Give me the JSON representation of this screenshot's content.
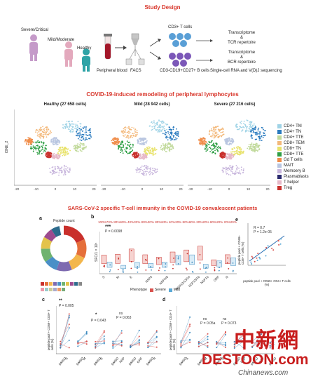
{
  "study_design": {
    "title": "Study Design",
    "groups": [
      "Severe/Critical",
      "Mild/Moderate",
      "Healthy"
    ],
    "blood_label": "Peripheral blood",
    "facs_label": "FACS",
    "tcell_label": "CD3+ T cells",
    "bcell_label": "CD3-CD19+CD27+ B cells",
    "tcr_text": [
      "Transcriptome",
      "&",
      "TCR repertoire"
    ],
    "bcr_text": [
      "Transcriptome",
      "&",
      "BCR repertoire"
    ],
    "seq_label": "Single-cell RNA and V(D)J sequencing"
  },
  "tsne": {
    "title": "COVID-19-induced remodeling of peripheral lymphocytes",
    "panels": [
      "Healthy (27 658 cells)",
      "Mild (28 942 cells)",
      "Severe (27 216 cells)"
    ],
    "y_axis": "tSNE_2",
    "x_ticks": [
      "-20",
      "-10",
      "0",
      "10",
      "20"
    ],
    "legend": [
      {
        "label": "CD4+ TM",
        "color": "#9fd3e6"
      },
      {
        "label": "CD4+ TN",
        "color": "#2b7bbf"
      },
      {
        "label": "CD4+ TTE",
        "color": "#c0d99a"
      },
      {
        "label": "CD8+ TEM",
        "color": "#f3b87a"
      },
      {
        "label": "CD8+ TN",
        "color": "#e8e26a"
      },
      {
        "label": "CD8+ TTE",
        "color": "#2e9e44"
      },
      {
        "label": "Gd T cells",
        "color": "#f08d4a"
      },
      {
        "label": "MAIT",
        "color": "#b8c5e0"
      },
      {
        "label": "Memoery B",
        "color": "#c7b5dc"
      },
      {
        "label": "Plasmablasts",
        "color": "#2a2a6e"
      },
      {
        "label": "T helper",
        "color": "#e6b8c8"
      },
      {
        "label": "Treg",
        "color": "#c9302c"
      }
    ]
  },
  "immunity": {
    "title": "SARS-CoV-2 specific T-cell immunity in the COVID-19 convalescent patients",
    "panel_a": {
      "letter": "a",
      "caption": "Peptide count"
    },
    "panel_b": {
      "letter": "b",
      "ylabel": "SFC/1 × 10⁵",
      "pvalue": "P = 0.0098",
      "stars": "***",
      "percents": "100%73% 80%60% 40%33% 80%20% 80%53% 40%20% 80%60% 20%20% 80%20% 20%20%",
      "categories": [
        "S",
        "M",
        "E",
        "NSP3",
        "NSP4/6",
        "NSP12/13/14",
        "NSP15/16",
        "NSP10",
        "ORF",
        "N"
      ],
      "legend_title": "Phenotype",
      "legend": [
        "Severe",
        "Mild"
      ]
    },
    "panel_c": {
      "letter": "c",
      "ylabel": "peptide pool + CD69+ CD8+ T cells (%)",
      "annotations": [
        "**",
        "P = 0.005",
        "*",
        "P = 0.043",
        "ns",
        "P = 0.063"
      ],
      "x_ticks": [
        "DMSO",
        "S",
        "DMSO",
        "M",
        "DMSO",
        "E",
        "DMSO",
        "NSP",
        "DMSO",
        "ORF",
        "DMSO",
        "N"
      ]
    },
    "panel_d": {
      "letter": "d",
      "ylabel": "peptide pool + CD69+ CD4+ T cells (%)",
      "annotations": [
        "ns",
        "P = 0.05a",
        "ns",
        "P = 0.073"
      ],
      "x_ticks": [
        "DMSO",
        "S",
        "DMSO",
        "M",
        "DMSO",
        "E",
        "DMSO",
        "NSP",
        "DMSO",
        "ORF",
        "DMSO"
      ]
    },
    "panel_e": {
      "letter": "e",
      "r_text": "R = 0.7",
      "p_text": "P = 1.2e-05",
      "ylabel": "peptide pool + CD69+ CD8+ T cells (%)",
      "xlabel": "peptide pool + CD69+ CD4+ T cells (%)",
      "x_ticks": [
        "0",
        "10",
        "20",
        "30",
        "40"
      ],
      "y_ticks": [
        "0",
        "10",
        "20",
        "30"
      ]
    }
  },
  "watermark": {
    "chinese": "中新網",
    "domain": "DESTOON.com",
    "sub": "Chinanews.com"
  }
}
